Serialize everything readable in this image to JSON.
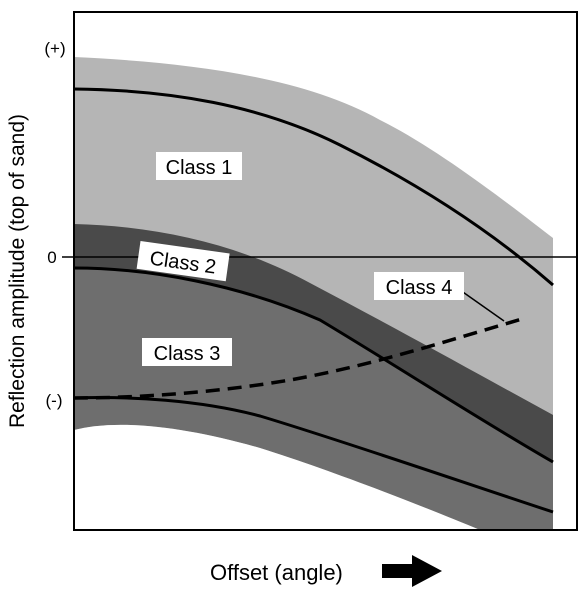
{
  "figure": {
    "y_axis_label": "Reflection amplitude (top of sand)",
    "x_axis_label": "Offset (angle)",
    "y_ticks": {
      "plus": "(+)",
      "zero": "0",
      "minus": "(-)"
    },
    "class_labels": {
      "class1": "Class 1",
      "class2": "Class 2",
      "class3": "Class 3",
      "class4": "Class 4"
    },
    "colors": {
      "class1_band": "#b5b5b5",
      "class2_band": "#4a4a4a",
      "class3_band": "#6e6e6e",
      "curves": "#000000",
      "label_box": "#ffffff"
    }
  }
}
